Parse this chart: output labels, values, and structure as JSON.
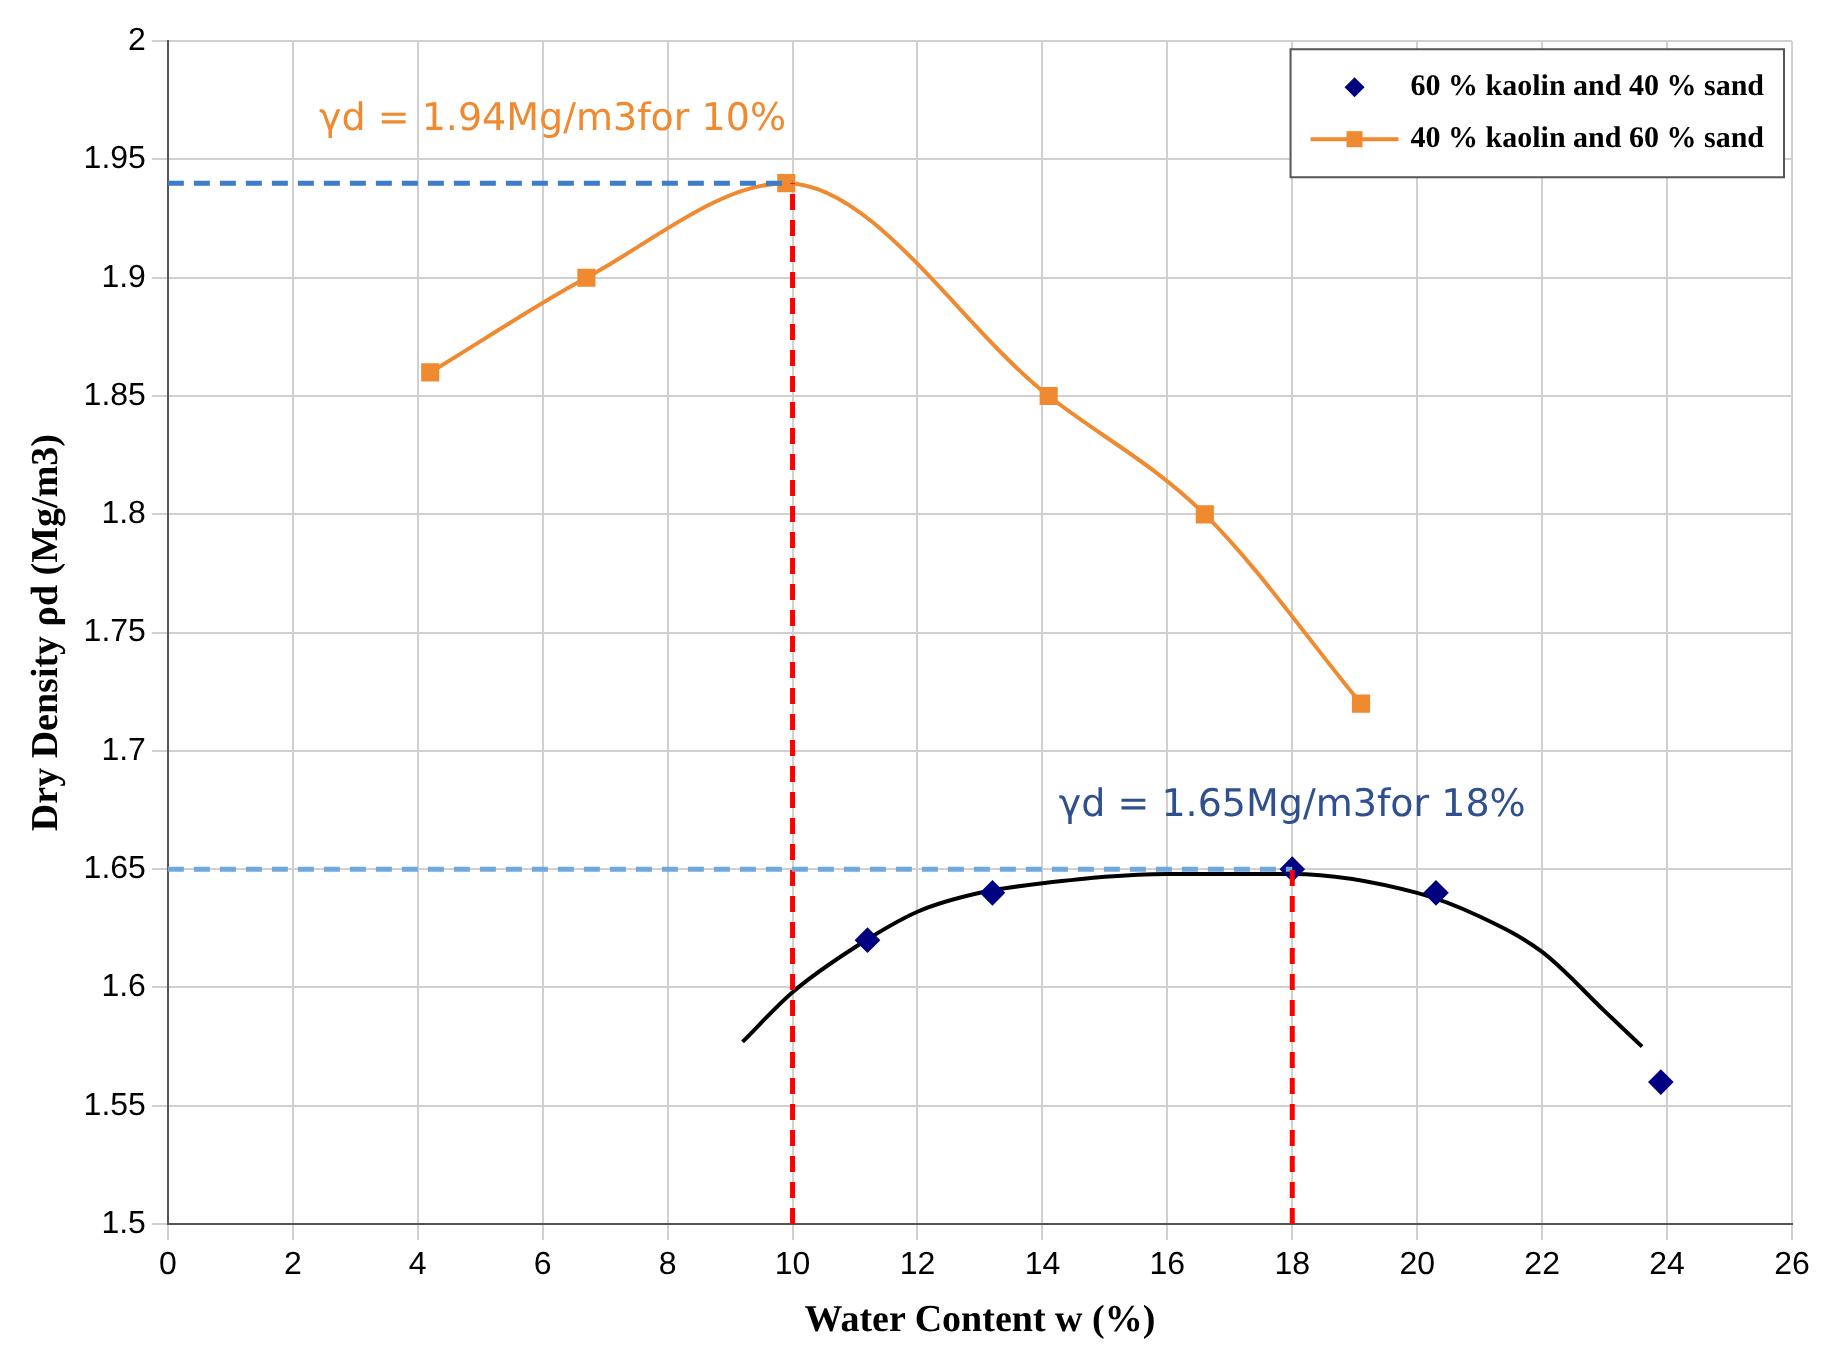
{
  "chart_data": {
    "type": "scatter",
    "xlabel": "Water Content w (%)",
    "ylabel": "Dry Density ρd (Mg/m3)",
    "xlim": [
      0,
      26
    ],
    "xticks": [
      0,
      2,
      4,
      6,
      8,
      10,
      12,
      14,
      16,
      18,
      20,
      22,
      24,
      26
    ],
    "ylim": [
      1.5,
      2
    ],
    "yticks": [
      1.5,
      1.55,
      1.6,
      1.65,
      1.7,
      1.75,
      1.8,
      1.85,
      1.9,
      1.95,
      2
    ],
    "grid": true,
    "legend": "top right",
    "series": [
      {
        "name": "60 % kaolin and 40 % sand",
        "type": "scatter",
        "marker": "diamond",
        "color": "#000080",
        "x": [
          11.2,
          13.2,
          18,
          20.3,
          23.9
        ],
        "values": [
          1.62,
          1.64,
          1.65,
          1.64,
          1.56
        ]
      },
      {
        "name": "40 % kaolin and 60 % sand",
        "type": "line",
        "marker": "square",
        "color": "#f08a30",
        "x": [
          4.2,
          6.7,
          9.9,
          14.1,
          16.6,
          19.1
        ],
        "values": [
          1.86,
          1.9,
          1.94,
          1.85,
          1.8,
          1.72
        ]
      },
      {
        "type": "line",
        "marker": "none",
        "color": "#000000",
        "x": [
          9.2,
          10,
          11,
          12,
          13,
          14,
          16,
          18,
          20,
          21,
          22,
          23,
          23.6
        ],
        "values": [
          1.577,
          1.598,
          1.617,
          1.632,
          1.64,
          1.644,
          1.648,
          1.648,
          1.64,
          1.63,
          1.615,
          1.59,
          1.575
        ]
      }
    ],
    "ref_lines": [
      {
        "axis": "y",
        "value": 1.94,
        "color": "#3d7cc9",
        "line_style": "dashed"
      },
      {
        "axis": "x",
        "value": 10,
        "color": "#ff0000",
        "line_style": "dashed"
      },
      {
        "axis": "y",
        "value": 1.65,
        "color": "#6fa8dc",
        "line_style": "dashed"
      },
      {
        "axis": "x",
        "value": 18,
        "color": "#ff0000",
        "line_style": "dashed"
      }
    ],
    "annotations": [
      {
        "text": "γd = 1.94Mg/m3for 10%",
        "x": 10,
        "y": 1.94
      },
      {
        "text": "γd = 1.65Mg/m3for 18%",
        "x": 18,
        "y": 1.65
      }
    ]
  }
}
